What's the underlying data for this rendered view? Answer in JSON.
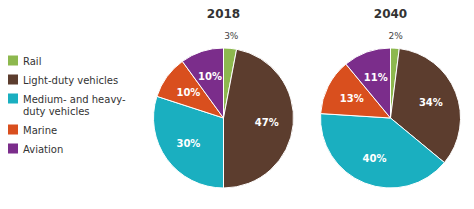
{
  "chart_data": {
    "type": "pie",
    "categories": [
      "Rail",
      "Light-duty vehicles",
      "Medium- and heavy-\nduty vehicles",
      "Marine",
      "Aviation"
    ],
    "colors": [
      "#8db84e",
      "#5c3d2e",
      "#1aafc0",
      "#d94f1e",
      "#7b2d8b"
    ],
    "series": [
      {
        "name": "2018",
        "values": [
          3,
          47,
          30,
          10,
          10
        ],
        "value_labels": [
          "3%",
          "47%",
          "30%",
          "10%",
          "10%"
        ]
      },
      {
        "name": "2040",
        "values": [
          2,
          34,
          40,
          13,
          11
        ],
        "value_labels": [
          "2%",
          "34%",
          "40%",
          "13%",
          "11%"
        ]
      }
    ],
    "data_labels": true,
    "legend": "left"
  }
}
